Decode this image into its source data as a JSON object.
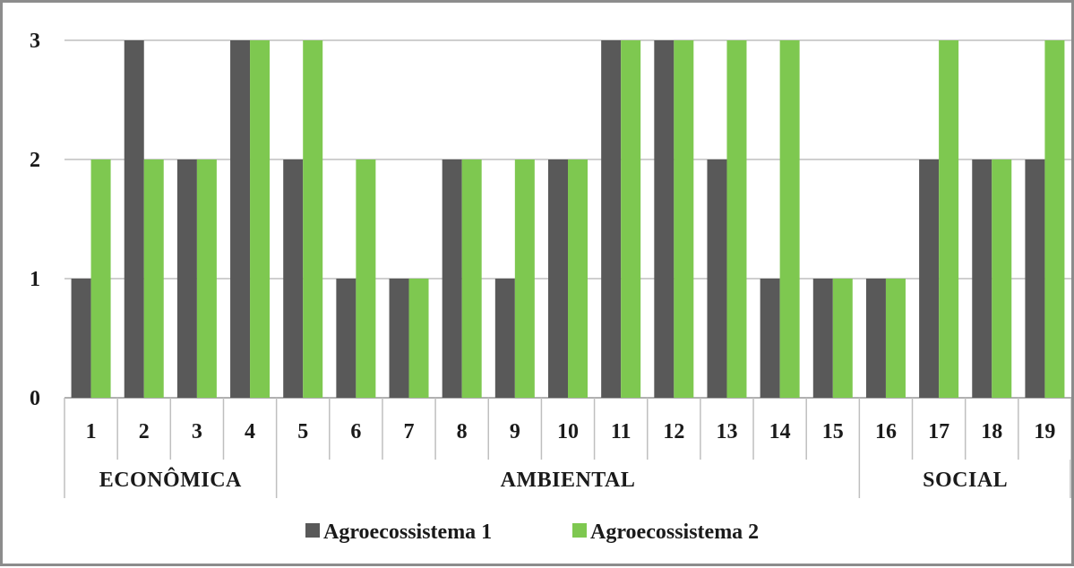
{
  "chart_data": {
    "type": "bar",
    "title": "",
    "xlabel": "",
    "ylabel": "",
    "ylim": [
      0,
      3
    ],
    "yticks": [
      0,
      1,
      2,
      3
    ],
    "grid": true,
    "legend_position": "bottom",
    "categories": [
      "1",
      "2",
      "3",
      "4",
      "5",
      "6",
      "7",
      "8",
      "9",
      "10",
      "11",
      "12",
      "13",
      "14",
      "15",
      "16",
      "17",
      "18",
      "19"
    ],
    "groups": [
      {
        "label": "ECONÔMICA",
        "categories": [
          "1",
          "2",
          "3",
          "4"
        ]
      },
      {
        "label": "AMBIENTAL",
        "categories": [
          "5",
          "6",
          "7",
          "8",
          "9",
          "10",
          "11",
          "12",
          "13",
          "14",
          "15"
        ]
      },
      {
        "label": "SOCIAL",
        "categories": [
          "16",
          "17",
          "18",
          "19"
        ]
      }
    ],
    "series": [
      {
        "name": "Agroecossistema 1",
        "color": "#595959",
        "values": [
          1,
          3,
          2,
          3,
          2,
          1,
          1,
          2,
          1,
          2,
          3,
          3,
          2,
          1,
          1,
          1,
          2,
          2,
          2
        ]
      },
      {
        "name": "Agroecossistema 2",
        "color": "#7ec850",
        "values": [
          2,
          2,
          2,
          3,
          3,
          2,
          1,
          2,
          2,
          2,
          3,
          3,
          3,
          3,
          1,
          1,
          3,
          2,
          3
        ]
      }
    ]
  }
}
